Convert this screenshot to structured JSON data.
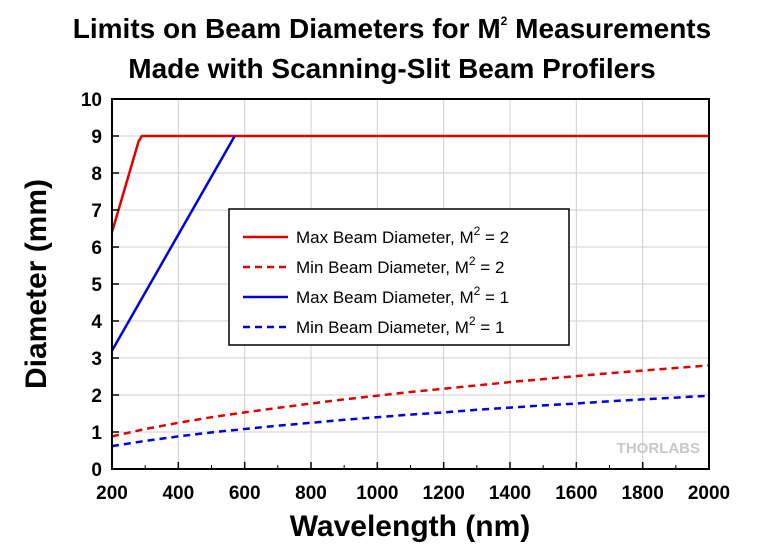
{
  "chart_data": {
    "type": "line",
    "title_line1_pre": "Limits on Beam Diameters for M",
    "title_line1_sup": "2",
    "title_line1_post": " Measurements",
    "title_line2": "Made with Scanning-Slit Beam Profilers",
    "xlabel": "Wavelength (nm)",
    "ylabel": "Diameter (mm)",
    "xlim": [
      200,
      2000
    ],
    "ylim": [
      0,
      10
    ],
    "xticks": [
      200,
      400,
      600,
      800,
      1000,
      1200,
      1400,
      1600,
      1800,
      2000
    ],
    "yticks": [
      0,
      1,
      2,
      3,
      4,
      5,
      6,
      7,
      8,
      9,
      10
    ],
    "grid": true,
    "legend_position": "center",
    "series": [
      {
        "name_pre": "Max Beam Diameter, M",
        "name_sup": "2",
        "name_post": " = 2",
        "color": "#e00000",
        "dash": "solid",
        "x": [
          200,
          280,
          290,
          2000
        ],
        "y": [
          6.4,
          8.85,
          9.0,
          9.0
        ]
      },
      {
        "name_pre": "Min Beam Diameter, M",
        "name_sup": "2",
        "name_post": " = 2",
        "color": "#e00000",
        "dash": "dashed",
        "x": [
          200,
          300,
          400,
          500,
          600,
          700,
          800,
          900,
          1000,
          1100,
          1200,
          1300,
          1400,
          1500,
          1600,
          1700,
          1800,
          1900,
          2000
        ],
        "y": [
          0.88,
          1.08,
          1.25,
          1.4,
          1.53,
          1.65,
          1.77,
          1.88,
          1.98,
          2.08,
          2.17,
          2.26,
          2.35,
          2.43,
          2.51,
          2.59,
          2.66,
          2.73,
          2.8
        ]
      },
      {
        "name_pre": "Max Beam Diameter, M",
        "name_sup": "2",
        "name_post": " = 1",
        "color": "#0000e0",
        "dash": "solid",
        "x": [
          200,
          570
        ],
        "y": [
          3.2,
          9.0
        ]
      },
      {
        "name_pre": "Min Beam Diameter, M",
        "name_sup": "2",
        "name_post": " = 1",
        "color": "#0000e0",
        "dash": "dashed",
        "x": [
          200,
          300,
          400,
          500,
          600,
          700,
          800,
          900,
          1000,
          1100,
          1200,
          1300,
          1400,
          1500,
          1600,
          1700,
          1800,
          1900,
          2000
        ],
        "y": [
          0.62,
          0.76,
          0.88,
          0.99,
          1.08,
          1.17,
          1.25,
          1.33,
          1.4,
          1.47,
          1.53,
          1.6,
          1.66,
          1.72,
          1.77,
          1.83,
          1.88,
          1.93,
          1.98
        ]
      }
    ]
  },
  "watermark": "THORLABS"
}
